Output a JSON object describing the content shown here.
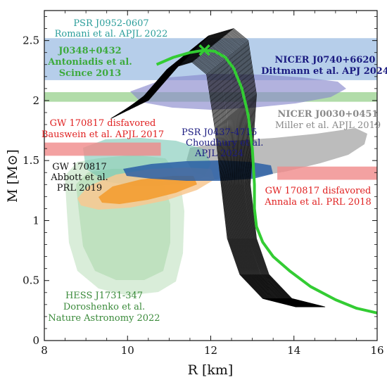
{
  "chart_data": {
    "type": "line",
    "xlabel": "R [km]",
    "ylabel": "M [M⊙]",
    "xlim": [
      8,
      16
    ],
    "ylim": [
      0,
      2.75
    ],
    "x_ticks": [
      8,
      10,
      12,
      14,
      16
    ],
    "y_ticks": [
      0,
      0.5,
      1,
      1.5,
      2,
      2.5
    ],
    "grid": false,
    "legend": "none",
    "colors": {
      "main_curve": "#33cc33",
      "curve_band": "#000000",
      "psr_j0952_band": "#a9c6e6",
      "j0348_band": "#a8d8a0",
      "gw_bauswein_band": "#f08a8a",
      "gw_annala_band": "#f08a8a",
      "nicer_j0740": "#8888cc",
      "nicer_j0030": "#b0b0b0",
      "psr_j0437": "#2a5fa6",
      "gw_abbott_outer": "#f8c890",
      "gw_abbott_inner": "#f39a2a",
      "hess": "#b8ddb8",
      "teal_region": "#66bba8"
    },
    "main_curve": {
      "name": "",
      "points": [
        [
          10.7,
          2.3
        ],
        [
          11.1,
          2.36
        ],
        [
          11.5,
          2.4
        ],
        [
          11.85,
          2.42
        ],
        [
          12.1,
          2.41
        ],
        [
          12.35,
          2.36
        ],
        [
          12.55,
          2.27
        ],
        [
          12.75,
          2.1
        ],
        [
          12.9,
          1.88
        ],
        [
          13.0,
          1.6
        ],
        [
          13.05,
          1.3
        ],
        [
          13.05,
          1.1
        ],
        [
          13.1,
          0.95
        ],
        [
          13.25,
          0.82
        ],
        [
          13.5,
          0.7
        ],
        [
          13.9,
          0.58
        ],
        [
          14.4,
          0.45
        ],
        [
          15.0,
          0.34
        ],
        [
          15.5,
          0.27
        ],
        [
          16.0,
          0.23
        ]
      ],
      "max_mass_marker": {
        "x": 11.85,
        "y": 2.42,
        "symbol": "x"
      }
    },
    "constraint_bands": [
      {
        "id": "psr_j0952",
        "y_range": [
          2.17,
          2.52
        ],
        "x_range": [
          8,
          16
        ]
      },
      {
        "id": "j0348",
        "y_range": [
          1.99,
          2.07
        ],
        "x_range": [
          8,
          16
        ]
      },
      {
        "id": "gw_bauswein",
        "y_range": [
          1.54,
          1.65
        ],
        "x_range": [
          8,
          10.8
        ]
      },
      {
        "id": "gw_annala",
        "y_range": [
          1.34,
          1.45
        ],
        "x_range": [
          13.6,
          16
        ]
      }
    ],
    "annotations": [
      {
        "id": "psr_j0952_name",
        "text": "PSR J0952-0607",
        "color": "#2a9d9a"
      },
      {
        "id": "psr_j0952_ref",
        "text": "Romani et al. APJL 2022",
        "color": "#2a9d9a"
      },
      {
        "id": "j0348_name",
        "text": "J0348+0432",
        "color": "#3daa3d",
        "bold": true
      },
      {
        "id": "j0348_ref1",
        "text": "Antoniadis et al.",
        "color": "#3daa3d",
        "bold": true
      },
      {
        "id": "j0348_ref2",
        "text": "Scince 2013",
        "color": "#3daa3d",
        "bold": true
      },
      {
        "id": "nicer_j0740_name",
        "text": "NICER J0740+6620",
        "color": "#1a1a80",
        "bold": true
      },
      {
        "id": "nicer_j0740_ref",
        "text": "Dittmann et al. APJ 2024",
        "color": "#1a1a80",
        "bold": true
      },
      {
        "id": "gw_bauswein_name",
        "text": "GW 170817 disfavored",
        "color": "#e02020"
      },
      {
        "id": "gw_bauswein_ref",
        "text": "Bauswein et al. APJL 2017",
        "color": "#e02020"
      },
      {
        "id": "nicer_j0030_name",
        "text": "NICER J0030+0451",
        "color": "#8a8a8a",
        "bold": true
      },
      {
        "id": "nicer_j0030_ref",
        "text": "Miller et al. APJL 2019",
        "color": "#8a8a8a"
      },
      {
        "id": "psr_j0437_name",
        "text": "PSR J0437-4715",
        "color": "#1a1a80"
      },
      {
        "id": "psr_j0437_ref1",
        "text": "Choudhury et al.",
        "color": "#1a1a80"
      },
      {
        "id": "psr_j0437_ref2",
        "text": "APJL 2024",
        "color": "#1a1a80"
      },
      {
        "id": "gw_abbott_name",
        "text": "GW 170817",
        "color": "#111111"
      },
      {
        "id": "gw_abbott_ref1",
        "text": "Abbott et al.",
        "color": "#111111"
      },
      {
        "id": "gw_abbott_ref2",
        "text": "PRL 2019",
        "color": "#111111"
      },
      {
        "id": "gw_annala_name",
        "text": "GW 170817 disfavored",
        "color": "#e02020"
      },
      {
        "id": "gw_annala_ref",
        "text": "Annala et al. PRL 2018",
        "color": "#e02020"
      },
      {
        "id": "hess_name",
        "text": "HESS J1731-347",
        "color": "#3a8a3a"
      },
      {
        "id": "hess_ref1",
        "text": "Doroshenko et al.",
        "color": "#3a8a3a"
      },
      {
        "id": "hess_ref2",
        "text": "Nature Astronomy 2022",
        "color": "#3a8a3a"
      }
    ]
  }
}
